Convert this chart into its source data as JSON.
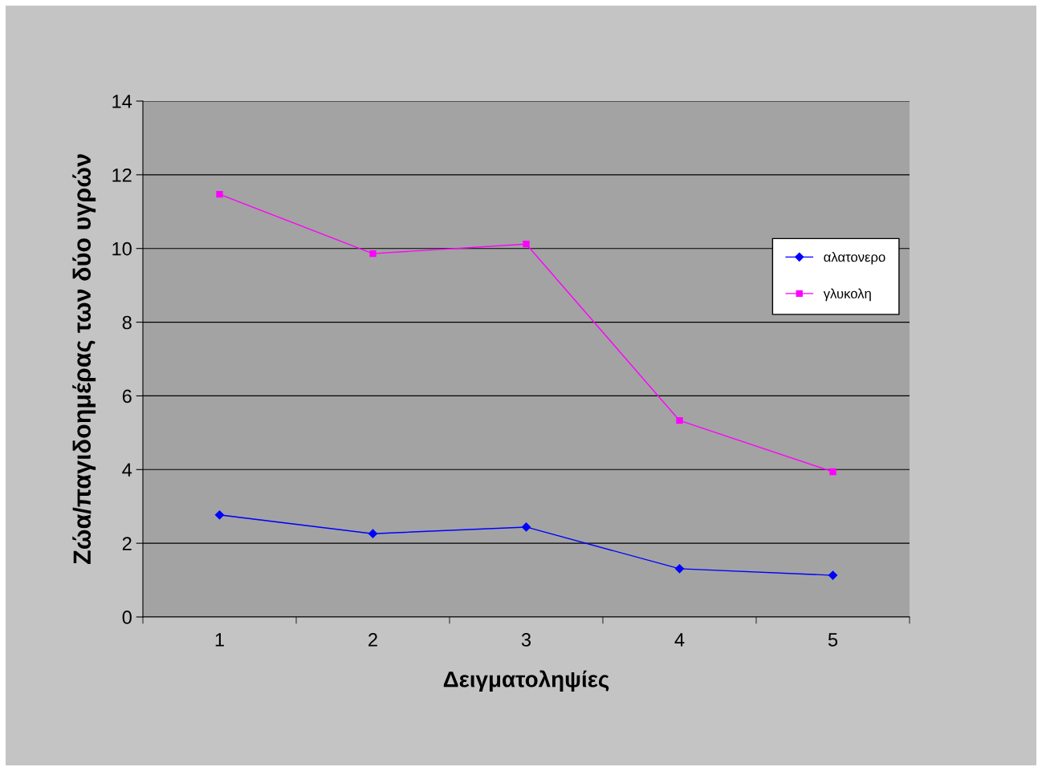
{
  "chart_data": {
    "type": "line",
    "xlabel": "Δειγματοληψίες",
    "ylabel": "Ζώα/παγιδοημέρας των δύο υγρών",
    "categories": [
      "1",
      "2",
      "3",
      "4",
      "5"
    ],
    "series": [
      {
        "name": "αλατονερο",
        "color": "#0000ff",
        "marker": "diamond",
        "values": [
          2.77,
          2.26,
          2.44,
          1.31,
          1.13
        ]
      },
      {
        "name": "γλυκολη",
        "color": "#ff00ff",
        "marker": "square",
        "values": [
          11.47,
          9.86,
          10.12,
          5.33,
          3.94
        ]
      }
    ],
    "ylim": [
      0,
      14
    ],
    "yticks": [
      0,
      2,
      4,
      6,
      8,
      10,
      12,
      14
    ],
    "grid": "y",
    "legend": "right"
  }
}
